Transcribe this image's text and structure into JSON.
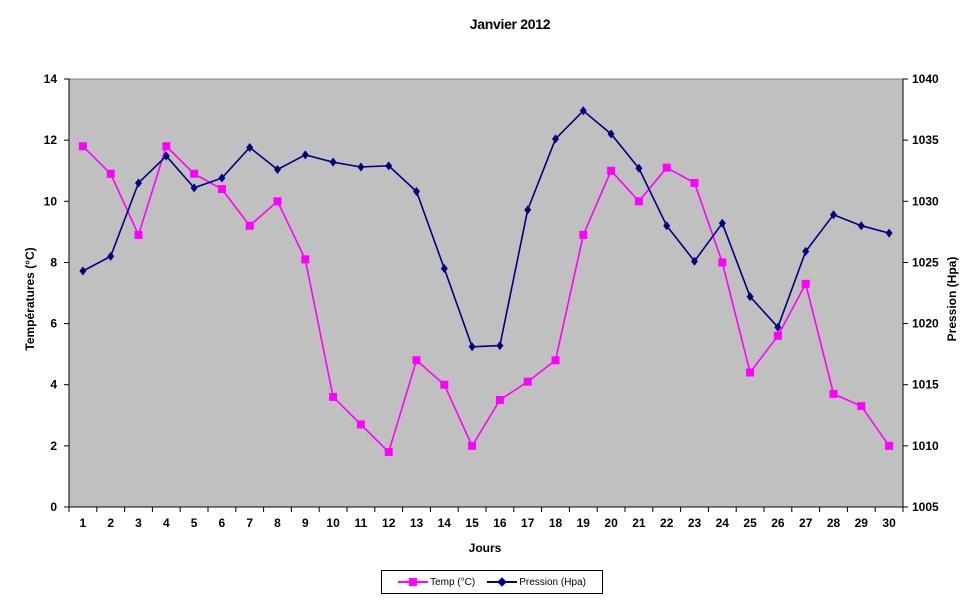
{
  "chart_data": {
    "type": "line",
    "title": "Janvier 2012",
    "xlabel": "Jours",
    "ylabel_left": "Températures  (°C)",
    "ylabel_right": "Pression (Hpa)",
    "x": [
      1,
      2,
      3,
      4,
      5,
      6,
      7,
      8,
      9,
      10,
      11,
      12,
      13,
      14,
      15,
      16,
      17,
      18,
      19,
      20,
      21,
      22,
      23,
      24,
      25,
      26,
      27,
      28,
      29,
      30
    ],
    "ylim_left": [
      0,
      14
    ],
    "yticks_left": [
      0,
      2,
      4,
      6,
      8,
      10,
      12,
      14
    ],
    "ylim_right": [
      1005,
      1040
    ],
    "yticks_right": [
      1005,
      1010,
      1015,
      1020,
      1025,
      1030,
      1035,
      1040
    ],
    "grid": false,
    "background": "#c0c0c0",
    "legend_position": "bottom",
    "series": [
      {
        "name": "Temp (°C)",
        "axis": "left",
        "color": "#ff00ff",
        "marker": "square",
        "values": [
          11.8,
          10.9,
          8.9,
          11.8,
          10.9,
          10.4,
          9.2,
          10.0,
          8.1,
          3.6,
          2.7,
          1.8,
          4.8,
          4.0,
          2.0,
          3.5,
          4.1,
          4.8,
          8.9,
          11.0,
          10.0,
          11.1,
          10.6,
          8.0,
          4.4,
          5.6,
          7.3,
          3.7,
          3.3,
          2.0
        ]
      },
      {
        "name": "Pression (Hpa)",
        "axis": "right",
        "color": "#000080",
        "marker": "diamond",
        "values": [
          1024.3,
          1025.5,
          1031.5,
          1033.7,
          1031.1,
          1031.9,
          1034.4,
          1032.6,
          1033.8,
          1033.2,
          1032.8,
          1032.9,
          1030.8,
          1024.5,
          1018.1,
          1018.2,
          1029.3,
          1035.1,
          1037.4,
          1035.5,
          1032.7,
          1028.0,
          1025.1,
          1028.2,
          1022.2,
          1019.7,
          1025.9,
          1028.9,
          1028.0,
          1027.4
        ]
      }
    ]
  }
}
